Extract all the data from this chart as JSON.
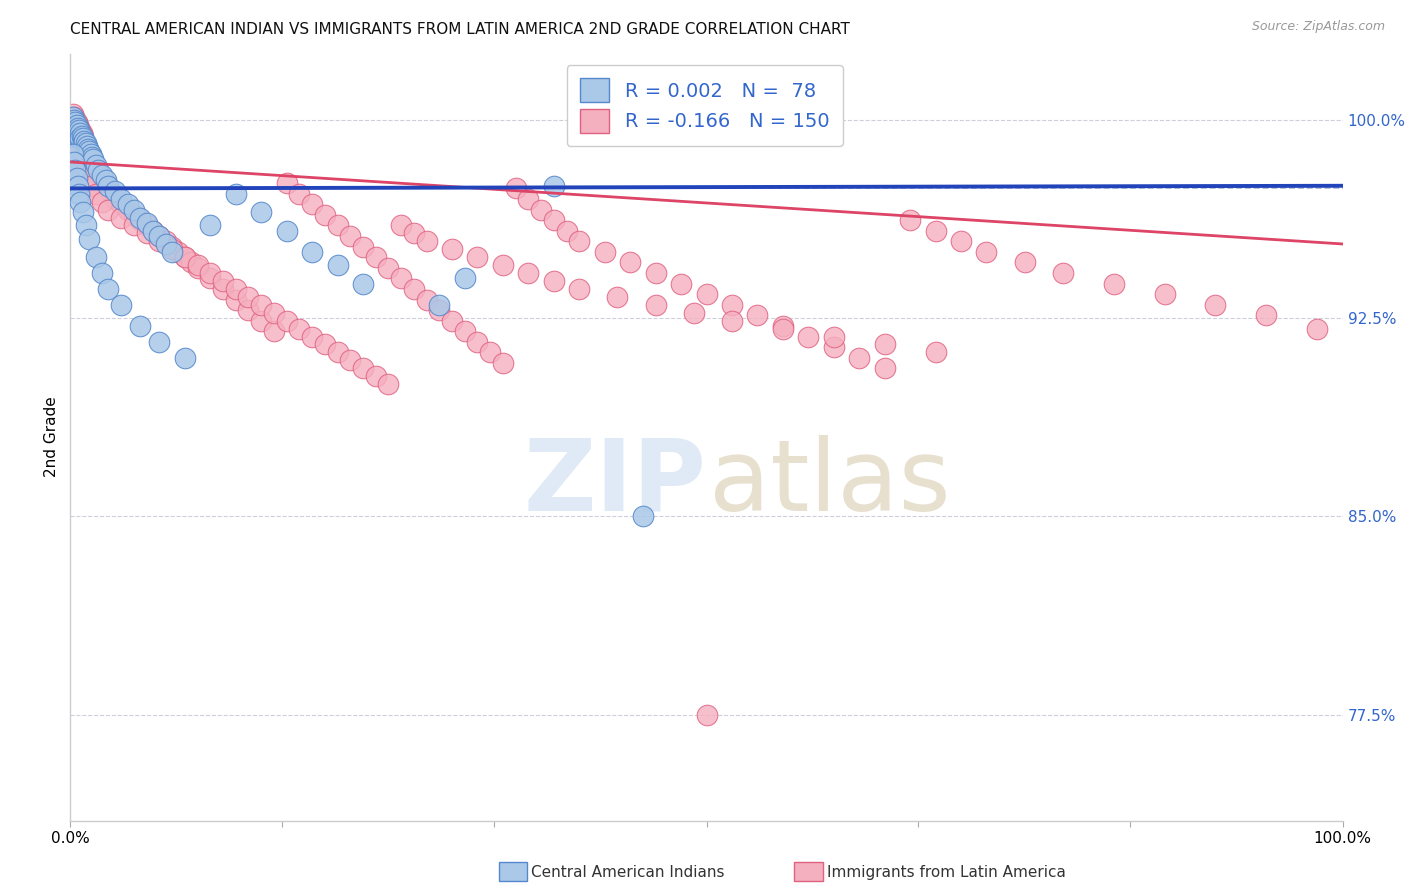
{
  "title": "CENTRAL AMERICAN INDIAN VS IMMIGRANTS FROM LATIN AMERICA 2ND GRADE CORRELATION CHART",
  "source": "Source: ZipAtlas.com",
  "ylabel": "2nd Grade",
  "xlim": [
    0.0,
    1.0
  ],
  "ylim": [
    0.735,
    1.025
  ],
  "yticks": [
    0.775,
    0.85,
    0.925,
    1.0
  ],
  "ytick_labels": [
    "77.5%",
    "85.0%",
    "92.5%",
    "100.0%"
  ],
  "dashed_hline": 0.974,
  "blue_R": "0.002",
  "blue_N": "78",
  "pink_R": "-0.166",
  "pink_N": "150",
  "blue_scatter_color": "#aac8e8",
  "pink_scatter_color": "#f5b0c0",
  "blue_edge_color": "#5588cc",
  "pink_edge_color": "#e06080",
  "blue_trend_color": "#2244bb",
  "pink_trend_color": "#dd4466",
  "blue_trend_x": [
    0.0,
    1.0
  ],
  "blue_trend_y": [
    0.974,
    0.975
  ],
  "pink_trend_x": [
    0.0,
    1.0
  ],
  "pink_trend_y": [
    0.984,
    0.953
  ],
  "axis_label_color": "#3366cc",
  "title_fontsize": 11,
  "tick_fontsize": 11,
  "legend_fontsize": 14,
  "blue_scatter_x": [
    0.001,
    0.001,
    0.001,
    0.001,
    0.002,
    0.002,
    0.002,
    0.002,
    0.003,
    0.003,
    0.003,
    0.003,
    0.004,
    0.004,
    0.004,
    0.005,
    0.005,
    0.005,
    0.006,
    0.006,
    0.007,
    0.007,
    0.008,
    0.008,
    0.009,
    0.01,
    0.01,
    0.011,
    0.012,
    0.013,
    0.014,
    0.015,
    0.016,
    0.017,
    0.018,
    0.02,
    0.022,
    0.025,
    0.028,
    0.03,
    0.035,
    0.04,
    0.045,
    0.05,
    0.055,
    0.06,
    0.065,
    0.07,
    0.075,
    0.08,
    0.002,
    0.003,
    0.004,
    0.005,
    0.006,
    0.007,
    0.008,
    0.01,
    0.012,
    0.015,
    0.02,
    0.025,
    0.03,
    0.04,
    0.055,
    0.07,
    0.09,
    0.11,
    0.13,
    0.15,
    0.17,
    0.19,
    0.21,
    0.23,
    0.29,
    0.31,
    0.38,
    0.45
  ],
  "blue_scatter_y": [
    0.998,
    1.0,
    0.996,
    0.994,
    1.001,
    0.999,
    0.997,
    0.995,
    1.0,
    0.998,
    0.996,
    0.994,
    0.999,
    0.997,
    0.995,
    0.998,
    0.996,
    0.994,
    0.997,
    0.995,
    0.996,
    0.994,
    0.995,
    0.993,
    0.994,
    0.993,
    0.991,
    0.992,
    0.991,
    0.99,
    0.989,
    0.988,
    0.987,
    0.986,
    0.985,
    0.983,
    0.981,
    0.979,
    0.977,
    0.975,
    0.973,
    0.97,
    0.968,
    0.966,
    0.963,
    0.961,
    0.958,
    0.956,
    0.953,
    0.95,
    0.987,
    0.984,
    0.981,
    0.978,
    0.975,
    0.972,
    0.969,
    0.965,
    0.96,
    0.955,
    0.948,
    0.942,
    0.936,
    0.93,
    0.922,
    0.916,
    0.91,
    0.96,
    0.972,
    0.965,
    0.958,
    0.95,
    0.945,
    0.938,
    0.93,
    0.94,
    0.975,
    0.85
  ],
  "pink_scatter_x": [
    0.001,
    0.001,
    0.002,
    0.002,
    0.002,
    0.003,
    0.003,
    0.003,
    0.004,
    0.004,
    0.005,
    0.005,
    0.006,
    0.006,
    0.007,
    0.007,
    0.008,
    0.008,
    0.009,
    0.01,
    0.01,
    0.011,
    0.012,
    0.013,
    0.014,
    0.015,
    0.016,
    0.017,
    0.018,
    0.02,
    0.022,
    0.025,
    0.028,
    0.03,
    0.033,
    0.035,
    0.04,
    0.045,
    0.05,
    0.055,
    0.06,
    0.065,
    0.07,
    0.075,
    0.08,
    0.085,
    0.09,
    0.095,
    0.1,
    0.11,
    0.12,
    0.13,
    0.14,
    0.15,
    0.16,
    0.17,
    0.18,
    0.19,
    0.2,
    0.21,
    0.22,
    0.23,
    0.24,
    0.25,
    0.26,
    0.27,
    0.28,
    0.29,
    0.3,
    0.31,
    0.32,
    0.33,
    0.34,
    0.35,
    0.36,
    0.37,
    0.38,
    0.39,
    0.4,
    0.42,
    0.44,
    0.46,
    0.48,
    0.5,
    0.52,
    0.54,
    0.56,
    0.58,
    0.6,
    0.62,
    0.64,
    0.66,
    0.68,
    0.7,
    0.72,
    0.75,
    0.78,
    0.82,
    0.86,
    0.9,
    0.94,
    0.98,
    0.003,
    0.005,
    0.008,
    0.012,
    0.016,
    0.02,
    0.025,
    0.03,
    0.04,
    0.05,
    0.06,
    0.07,
    0.08,
    0.09,
    0.1,
    0.11,
    0.12,
    0.13,
    0.14,
    0.15,
    0.16,
    0.17,
    0.18,
    0.19,
    0.2,
    0.21,
    0.22,
    0.23,
    0.24,
    0.25,
    0.26,
    0.27,
    0.28,
    0.3,
    0.32,
    0.34,
    0.36,
    0.38,
    0.4,
    0.43,
    0.46,
    0.49,
    0.52,
    0.56,
    0.6,
    0.64,
    0.68,
    0.5
  ],
  "pink_scatter_y": [
    1.0,
    0.998,
    1.002,
    1.0,
    0.998,
    1.001,
    0.999,
    0.997,
    1.0,
    0.998,
    0.999,
    0.997,
    0.998,
    0.996,
    0.997,
    0.995,
    0.996,
    0.994,
    0.995,
    0.994,
    0.992,
    0.991,
    0.99,
    0.989,
    0.988,
    0.987,
    0.986,
    0.985,
    0.984,
    0.982,
    0.98,
    0.978,
    0.976,
    0.974,
    0.972,
    0.97,
    0.968,
    0.966,
    0.964,
    0.962,
    0.96,
    0.958,
    0.956,
    0.954,
    0.952,
    0.95,
    0.948,
    0.946,
    0.944,
    0.94,
    0.936,
    0.932,
    0.928,
    0.924,
    0.92,
    0.976,
    0.972,
    0.968,
    0.964,
    0.96,
    0.956,
    0.952,
    0.948,
    0.944,
    0.94,
    0.936,
    0.932,
    0.928,
    0.924,
    0.92,
    0.916,
    0.912,
    0.908,
    0.974,
    0.97,
    0.966,
    0.962,
    0.958,
    0.954,
    0.95,
    0.946,
    0.942,
    0.938,
    0.934,
    0.93,
    0.926,
    0.922,
    0.918,
    0.914,
    0.91,
    0.906,
    0.962,
    0.958,
    0.954,
    0.95,
    0.946,
    0.942,
    0.938,
    0.934,
    0.93,
    0.926,
    0.921,
    0.987,
    0.984,
    0.981,
    0.978,
    0.975,
    0.972,
    0.969,
    0.966,
    0.963,
    0.96,
    0.957,
    0.954,
    0.951,
    0.948,
    0.945,
    0.942,
    0.939,
    0.936,
    0.933,
    0.93,
    0.927,
    0.924,
    0.921,
    0.918,
    0.915,
    0.912,
    0.909,
    0.906,
    0.903,
    0.9,
    0.96,
    0.957,
    0.954,
    0.951,
    0.948,
    0.945,
    0.942,
    0.939,
    0.936,
    0.933,
    0.93,
    0.927,
    0.924,
    0.921,
    0.918,
    0.915,
    0.912,
    0.775
  ]
}
